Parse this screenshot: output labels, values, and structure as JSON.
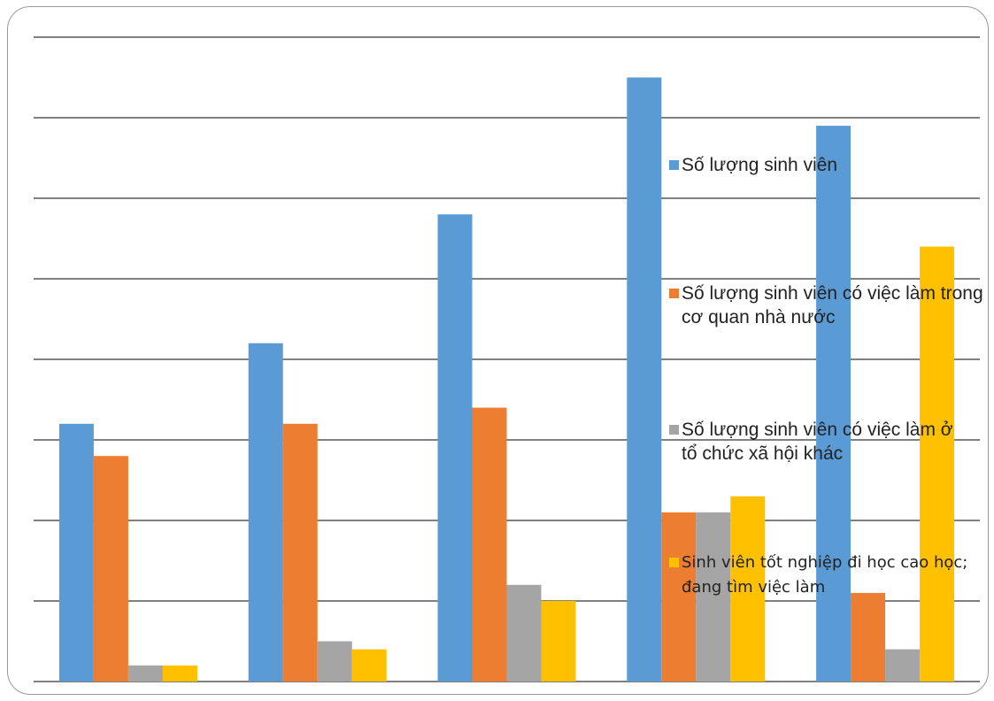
{
  "chart_data": {
    "type": "bar",
    "categories": [
      "",
      "",
      "",
      "",
      ""
    ],
    "ylim": [
      0,
      8
    ],
    "grid": true,
    "legend_position": "right",
    "series": [
      {
        "name": "Số lượng sinh viên",
        "color": "#5b9bd5",
        "values": [
          3.2,
          4.2,
          5.8,
          7.5,
          6.9
        ]
      },
      {
        "name": "Số lượng sinh viên có việc làm trong cơ quan nhà nước",
        "color": "#ed7d31",
        "values": [
          2.8,
          3.2,
          3.4,
          2.1,
          1.1
        ]
      },
      {
        "name": "Số lượng sinh viên có việc làm ở tổ chức xã hội khác",
        "color": "#a5a5a5",
        "values": [
          0.2,
          0.5,
          1.2,
          2.1,
          0.4
        ]
      },
      {
        "name": "Sinh viên tốt nghiệp đi học cao học; đang tìm việc làm",
        "color": "#ffc000",
        "values": [
          0.2,
          0.4,
          1.0,
          2.3,
          5.4
        ]
      }
    ]
  }
}
